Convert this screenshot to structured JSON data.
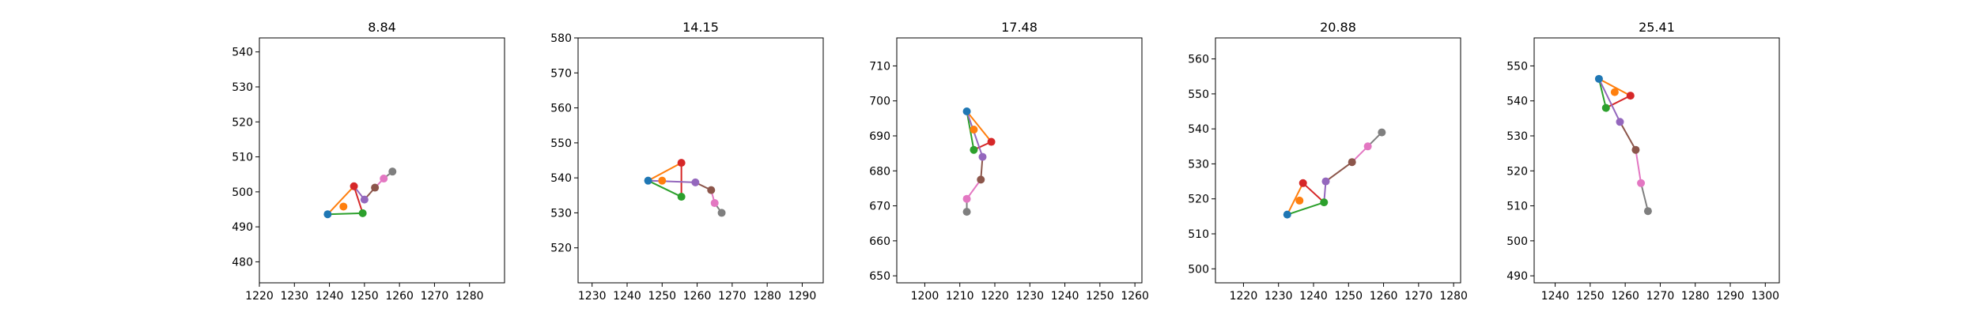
{
  "chart_data": [
    {
      "type": "scatter",
      "title": "8.84",
      "xlim": [
        1220,
        1290
      ],
      "ylim": [
        474,
        544
      ],
      "xticks": [
        1220,
        1230,
        1240,
        1250,
        1260,
        1270,
        1280
      ],
      "yticks": [
        480,
        490,
        500,
        510,
        520,
        530,
        540
      ],
      "points": [
        {
          "x": 1239.5,
          "y": 493.6,
          "color": "#1f77b4"
        },
        {
          "x": 1244.0,
          "y": 495.8,
          "color": "#ff7f0e"
        },
        {
          "x": 1249.5,
          "y": 493.9,
          "color": "#2ca02c"
        },
        {
          "x": 1247.0,
          "y": 501.6,
          "color": "#d62728"
        },
        {
          "x": 1250.0,
          "y": 497.8,
          "color": "#9467bd"
        },
        {
          "x": 1253.0,
          "y": 501.2,
          "color": "#8c564b"
        },
        {
          "x": 1255.5,
          "y": 503.8,
          "color": "#e377c2"
        },
        {
          "x": 1258.0,
          "y": 505.8,
          "color": "#7f7f7f"
        }
      ],
      "segments": [
        {
          "from": 0,
          "to": 3,
          "color": "#ff7f0e"
        },
        {
          "from": 0,
          "to": 2,
          "color": "#2ca02c"
        },
        {
          "from": 3,
          "to": 2,
          "color": "#d62728"
        },
        {
          "from": 3,
          "to": 4,
          "color": "#9467bd"
        },
        {
          "from": 4,
          "to": 5,
          "color": "#8c564b"
        },
        {
          "from": 5,
          "to": 6,
          "color": "#e377c2"
        },
        {
          "from": 6,
          "to": 7,
          "color": "#7f7f7f"
        }
      ]
    },
    {
      "type": "scatter",
      "title": "14.15",
      "xlim": [
        1226,
        1296
      ],
      "ylim": [
        510,
        580
      ],
      "xticks": [
        1230,
        1240,
        1250,
        1260,
        1270,
        1280,
        1290
      ],
      "yticks": [
        520,
        530,
        540,
        550,
        560,
        570,
        580
      ],
      "points": [
        {
          "x": 1246.0,
          "y": 539.2,
          "color": "#1f77b4"
        },
        {
          "x": 1250.0,
          "y": 539.2,
          "color": "#ff7f0e"
        },
        {
          "x": 1255.5,
          "y": 534.6,
          "color": "#2ca02c"
        },
        {
          "x": 1255.5,
          "y": 544.3,
          "color": "#d62728"
        },
        {
          "x": 1259.5,
          "y": 538.7,
          "color": "#9467bd"
        },
        {
          "x": 1264.0,
          "y": 536.5,
          "color": "#8c564b"
        },
        {
          "x": 1265.0,
          "y": 532.8,
          "color": "#e377c2"
        },
        {
          "x": 1267.0,
          "y": 530.0,
          "color": "#7f7f7f"
        }
      ],
      "segments": [
        {
          "from": 0,
          "to": 3,
          "color": "#ff7f0e"
        },
        {
          "from": 0,
          "to": 2,
          "color": "#2ca02c"
        },
        {
          "from": 3,
          "to": 2,
          "color": "#d62728"
        },
        {
          "from": 0,
          "to": 4,
          "color": "#9467bd"
        },
        {
          "from": 4,
          "to": 5,
          "color": "#8c564b"
        },
        {
          "from": 5,
          "to": 6,
          "color": "#e377c2"
        },
        {
          "from": 6,
          "to": 7,
          "color": "#7f7f7f"
        }
      ]
    },
    {
      "type": "scatter",
      "title": "17.48",
      "xlim": [
        1192,
        1262
      ],
      "ylim": [
        648,
        718
      ],
      "xticks": [
        1200,
        1210,
        1220,
        1230,
        1240,
        1250,
        1260
      ],
      "yticks": [
        650,
        660,
        670,
        680,
        690,
        700,
        710
      ],
      "points": [
        {
          "x": 1212.0,
          "y": 697.0,
          "color": "#1f77b4"
        },
        {
          "x": 1214.0,
          "y": 691.8,
          "color": "#ff7f0e"
        },
        {
          "x": 1214.0,
          "y": 686.0,
          "color": "#2ca02c"
        },
        {
          "x": 1219.0,
          "y": 688.3,
          "color": "#d62728"
        },
        {
          "x": 1216.5,
          "y": 684.0,
          "color": "#9467bd"
        },
        {
          "x": 1216.0,
          "y": 677.5,
          "color": "#8c564b"
        },
        {
          "x": 1212.0,
          "y": 672.0,
          "color": "#e377c2"
        },
        {
          "x": 1212.0,
          "y": 668.3,
          "color": "#7f7f7f"
        }
      ],
      "segments": [
        {
          "from": 0,
          "to": 3,
          "color": "#ff7f0e"
        },
        {
          "from": 0,
          "to": 2,
          "color": "#2ca02c"
        },
        {
          "from": 3,
          "to": 2,
          "color": "#d62728"
        },
        {
          "from": 0,
          "to": 4,
          "color": "#9467bd"
        },
        {
          "from": 4,
          "to": 5,
          "color": "#8c564b"
        },
        {
          "from": 5,
          "to": 6,
          "color": "#e377c2"
        },
        {
          "from": 6,
          "to": 7,
          "color": "#7f7f7f"
        }
      ]
    },
    {
      "type": "scatter",
      "title": "20.88",
      "xlim": [
        1212,
        1282
      ],
      "ylim": [
        496,
        566
      ],
      "xticks": [
        1220,
        1230,
        1240,
        1250,
        1260,
        1270,
        1280
      ],
      "yticks": [
        500,
        510,
        520,
        530,
        540,
        550,
        560
      ],
      "points": [
        {
          "x": 1232.5,
          "y": 515.5,
          "color": "#1f77b4"
        },
        {
          "x": 1236.0,
          "y": 519.5,
          "color": "#ff7f0e"
        },
        {
          "x": 1243.0,
          "y": 519.0,
          "color": "#2ca02c"
        },
        {
          "x": 1237.0,
          "y": 524.5,
          "color": "#d62728"
        },
        {
          "x": 1243.5,
          "y": 525.0,
          "color": "#9467bd"
        },
        {
          "x": 1251.0,
          "y": 530.5,
          "color": "#8c564b"
        },
        {
          "x": 1255.5,
          "y": 535.0,
          "color": "#e377c2"
        },
        {
          "x": 1259.5,
          "y": 539.0,
          "color": "#7f7f7f"
        }
      ],
      "segments": [
        {
          "from": 0,
          "to": 3,
          "color": "#ff7f0e"
        },
        {
          "from": 0,
          "to": 2,
          "color": "#2ca02c"
        },
        {
          "from": 3,
          "to": 2,
          "color": "#d62728"
        },
        {
          "from": 2,
          "to": 4,
          "color": "#9467bd"
        },
        {
          "from": 4,
          "to": 5,
          "color": "#8c564b"
        },
        {
          "from": 5,
          "to": 6,
          "color": "#e377c2"
        },
        {
          "from": 6,
          "to": 7,
          "color": "#7f7f7f"
        }
      ]
    },
    {
      "type": "scatter",
      "title": "25.41",
      "xlim": [
        1234,
        1304
      ],
      "ylim": [
        488,
        558
      ],
      "xticks": [
        1240,
        1250,
        1260,
        1270,
        1280,
        1290,
        1300
      ],
      "yticks": [
        490,
        500,
        510,
        520,
        530,
        540,
        550
      ],
      "points": [
        {
          "x": 1252.5,
          "y": 546.3,
          "color": "#1f77b4"
        },
        {
          "x": 1257.0,
          "y": 542.5,
          "color": "#ff7f0e"
        },
        {
          "x": 1254.5,
          "y": 538.0,
          "color": "#2ca02c"
        },
        {
          "x": 1261.5,
          "y": 541.5,
          "color": "#d62728"
        },
        {
          "x": 1258.5,
          "y": 534.0,
          "color": "#9467bd"
        },
        {
          "x": 1263.0,
          "y": 526.0,
          "color": "#8c564b"
        },
        {
          "x": 1264.5,
          "y": 516.5,
          "color": "#e377c2"
        },
        {
          "x": 1266.5,
          "y": 508.5,
          "color": "#7f7f7f"
        }
      ],
      "segments": [
        {
          "from": 0,
          "to": 3,
          "color": "#ff7f0e"
        },
        {
          "from": 0,
          "to": 2,
          "color": "#2ca02c"
        },
        {
          "from": 3,
          "to": 2,
          "color": "#d62728"
        },
        {
          "from": 0,
          "to": 4,
          "color": "#9467bd"
        },
        {
          "from": 4,
          "to": 5,
          "color": "#8c564b"
        },
        {
          "from": 5,
          "to": 6,
          "color": "#e377c2"
        },
        {
          "from": 6,
          "to": 7,
          "color": "#7f7f7f"
        }
      ]
    }
  ]
}
